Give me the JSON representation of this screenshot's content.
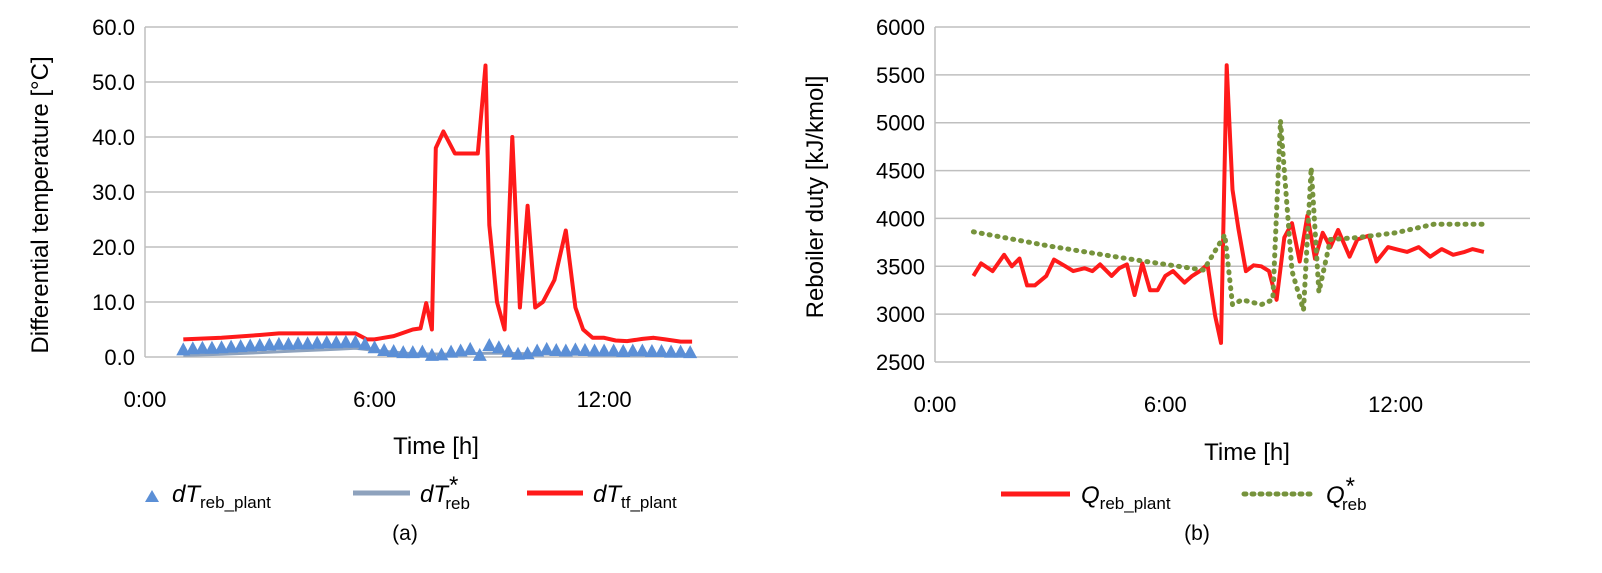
{
  "charts": [
    {
      "panel_label": "(a)",
      "xlabel": "Time [h]",
      "ylabel": "Differential temperature [°C]",
      "x_ticks": [
        "0:00",
        "6:00",
        "12:00"
      ],
      "y_ticks": [
        "0.0",
        "10.0",
        "20.0",
        "30.0",
        "40.0",
        "50.0",
        "60.0"
      ],
      "legend": [
        {
          "main": "dT",
          "sub": "reb_plant",
          "sup": ""
        },
        {
          "main": "dT",
          "sub": "reb",
          "sup": "*"
        },
        {
          "main": "dT",
          "sub": "tf_plant",
          "sup": ""
        }
      ]
    },
    {
      "panel_label": "(b)",
      "xlabel": "Time [h]",
      "ylabel": "Reboiler duty [kJ/kmol]",
      "x_ticks": [
        "0:00",
        "6:00",
        "12:00"
      ],
      "y_ticks": [
        "2500",
        "3000",
        "3500",
        "4000",
        "4500",
        "5000",
        "5500",
        "6000"
      ],
      "legend": [
        {
          "main": "Q",
          "sub": "reb_plant",
          "sup": ""
        },
        {
          "main": "Q",
          "sub": "reb",
          "sup": "*"
        }
      ]
    }
  ],
  "chart_data": [
    {
      "type": "line",
      "xlabel": "Time [h]",
      "ylabel": "Differential temperature [°C]",
      "xlim": [
        0,
        15.5
      ],
      "ylim": [
        0,
        60
      ],
      "grid": true,
      "legend_position": "bottom",
      "colors": {
        "dT_reb_plant": "#5b8fd6",
        "dT_reb_star": "#8ea2bd",
        "dT_tf_plant": "#ff1a1a"
      },
      "series": [
        {
          "name": "dT_reb_plant",
          "style": "triangle-markers",
          "color": "#5b8fd6",
          "x": [
            1.0,
            1.25,
            1.5,
            1.75,
            2.0,
            2.25,
            2.5,
            2.75,
            3.0,
            3.25,
            3.5,
            3.75,
            4.0,
            4.25,
            4.5,
            4.75,
            5.0,
            5.25,
            5.5,
            5.75,
            6.0,
            6.25,
            6.5,
            6.75,
            7.0,
            7.25,
            7.5,
            7.75,
            8.0,
            8.25,
            8.5,
            8.75,
            9.0,
            9.25,
            9.5,
            9.75,
            10.0,
            10.25,
            10.5,
            10.75,
            11.0,
            11.25,
            11.5,
            11.75,
            12.0,
            12.25,
            12.5,
            12.75,
            13.0,
            13.25,
            13.5,
            13.75,
            14.0,
            14.25
          ],
          "y": [
            1.2,
            1.4,
            1.5,
            1.5,
            1.6,
            1.7,
            1.8,
            1.9,
            2.0,
            2.1,
            2.2,
            2.2,
            2.3,
            2.3,
            2.4,
            2.5,
            2.5,
            2.6,
            2.6,
            2.2,
            1.6,
            1.1,
            0.9,
            0.7,
            0.7,
            0.8,
            0.2,
            0.3,
            0.8,
            1.0,
            1.3,
            0.2,
            2.0,
            1.6,
            0.9,
            0.4,
            0.5,
            1.0,
            1.3,
            1.1,
            1.0,
            1.2,
            1.1,
            1.0,
            1.0,
            1.0,
            0.9,
            1.0,
            1.0,
            0.9,
            0.9,
            0.8,
            0.8,
            0.7
          ]
        },
        {
          "name": "dT*_reb",
          "style": "line",
          "color": "#8ea2bd",
          "x": [
            1.0,
            2.0,
            3.0,
            4.0,
            5.0,
            5.5,
            6.0,
            7.0,
            8.0,
            9.0,
            10.0,
            11.0,
            12.0,
            13.0,
            14.3
          ],
          "y": [
            0.3,
            0.5,
            0.8,
            1.1,
            1.4,
            1.6,
            1.2,
            0.6,
            0.5,
            0.7,
            0.6,
            0.5,
            0.5,
            0.5,
            0.4
          ]
        },
        {
          "name": "dT_tf_plant",
          "style": "line",
          "color": "#ff1a1a",
          "x": [
            1.0,
            2.0,
            3.0,
            3.5,
            4.0,
            5.0,
            5.5,
            5.8,
            6.0,
            6.5,
            7.0,
            7.2,
            7.35,
            7.5,
            7.6,
            7.8,
            8.1,
            8.4,
            8.7,
            8.9,
            9.0,
            9.2,
            9.4,
            9.6,
            9.8,
            10.0,
            10.2,
            10.4,
            10.7,
            11.0,
            11.25,
            11.45,
            11.7,
            12.0,
            12.3,
            12.6,
            13.0,
            13.3,
            13.6,
            14.0,
            14.3
          ],
          "y": [
            3.2,
            3.5,
            4.0,
            4.3,
            4.3,
            4.3,
            4.3,
            3.2,
            3.2,
            3.8,
            5.0,
            5.2,
            9.8,
            5.0,
            38.0,
            41.0,
            37.0,
            37.0,
            37.0,
            53.0,
            24.0,
            10.0,
            5.0,
            40.0,
            9.0,
            27.5,
            9.0,
            10.0,
            14.0,
            23.0,
            9.0,
            5.0,
            3.5,
            3.5,
            3.0,
            2.9,
            3.3,
            3.5,
            3.2,
            2.8,
            2.8
          ]
        }
      ]
    },
    {
      "type": "line",
      "xlabel": "Time [h]",
      "ylabel": "Reboiler duty [kJ/kmol]",
      "xlim": [
        0,
        15.5
      ],
      "ylim": [
        2500,
        6000
      ],
      "grid": true,
      "legend_position": "bottom",
      "colors": {
        "Q_reb_plant": "#ff1a1a",
        "Q_reb_star": "#76933c"
      },
      "series": [
        {
          "name": "Q_reb_plant",
          "style": "line",
          "color": "#ff1a1a",
          "x": [
            1.0,
            1.2,
            1.5,
            1.8,
            2.0,
            2.2,
            2.4,
            2.6,
            2.9,
            3.1,
            3.4,
            3.6,
            3.9,
            4.1,
            4.3,
            4.6,
            4.8,
            5.0,
            5.2,
            5.4,
            5.6,
            5.8,
            6.0,
            6.2,
            6.5,
            6.7,
            6.9,
            7.1,
            7.3,
            7.45,
            7.6,
            7.75,
            7.9,
            8.1,
            8.3,
            8.5,
            8.7,
            8.9,
            9.1,
            9.3,
            9.5,
            9.7,
            9.9,
            10.1,
            10.3,
            10.5,
            10.8,
            11.0,
            11.3,
            11.5,
            11.8,
            12.0,
            12.3,
            12.6,
            12.9,
            13.2,
            13.5,
            13.8,
            14.0,
            14.3
          ],
          "y": [
            3400,
            3530,
            3450,
            3620,
            3500,
            3580,
            3300,
            3300,
            3400,
            3570,
            3500,
            3450,
            3480,
            3450,
            3520,
            3400,
            3480,
            3520,
            3200,
            3530,
            3250,
            3250,
            3400,
            3450,
            3330,
            3400,
            3450,
            3520,
            2980,
            2700,
            5600,
            4300,
            3900,
            3450,
            3510,
            3500,
            3450,
            3150,
            3800,
            3950,
            3550,
            4030,
            3580,
            3850,
            3700,
            3880,
            3600,
            3780,
            3820,
            3550,
            3700,
            3680,
            3650,
            3700,
            3600,
            3680,
            3620,
            3650,
            3680,
            3650
          ]
        },
        {
          "name": "Q*_reb",
          "style": "dotted",
          "color": "#76933c",
          "x": [
            1.0,
            3.0,
            5.0,
            7.0,
            7.55,
            7.75,
            8.0,
            8.5,
            8.8,
            9.0,
            9.3,
            9.6,
            9.8,
            10.0,
            10.3,
            11.0,
            12.0,
            13.0,
            14.3
          ],
          "y": [
            3860,
            3710,
            3580,
            3460,
            3830,
            3100,
            3150,
            3100,
            3150,
            5020,
            3450,
            3040,
            4530,
            3230,
            3780,
            3800,
            3850,
            3940,
            3940
          ]
        }
      ]
    }
  ]
}
